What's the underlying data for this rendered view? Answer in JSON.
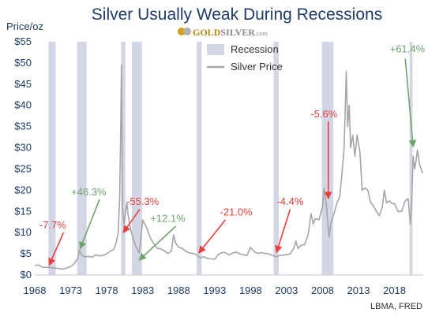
{
  "chart_data": {
    "type": "line",
    "title": "Silver Usually Weak During Recessions",
    "ylabel": "Price/oz",
    "xlim": [
      1968,
      2022
    ],
    "ylim": [
      0,
      55
    ],
    "x_ticks": [
      1968,
      1973,
      1978,
      1983,
      1988,
      1993,
      1998,
      2003,
      2008,
      2013,
      2018
    ],
    "y_ticks": [
      "$0",
      "$5",
      "$10",
      "$15",
      "$20",
      "$25",
      "$30",
      "$35",
      "$40",
      "$45",
      "$50",
      "$55"
    ],
    "legend": {
      "position": "top-right",
      "recession_label": "Recession",
      "series_label": "Silver Price"
    },
    "colors": {
      "recession": "#d3d6e4",
      "series": "#a6a6a6",
      "negative": "#e8403e",
      "positive": "#6fa36f",
      "axis_text": "#1f3b66"
    },
    "recessions": [
      {
        "start": 1969.9,
        "end": 1970.9
      },
      {
        "start": 1973.9,
        "end": 1975.2
      },
      {
        "start": 1980.0,
        "end": 1980.6
      },
      {
        "start": 1981.5,
        "end": 1982.9
      },
      {
        "start": 1990.5,
        "end": 1991.2
      },
      {
        "start": 2001.2,
        "end": 2001.9
      },
      {
        "start": 2007.9,
        "end": 2009.5
      },
      {
        "start": 2020.1,
        "end": 2020.5
      }
    ],
    "series": [
      {
        "name": "Silver Price",
        "points": [
          [
            1968.0,
            2.2
          ],
          [
            1968.5,
            2.4
          ],
          [
            1969.0,
            1.9
          ],
          [
            1969.5,
            1.8
          ],
          [
            1970.0,
            1.8
          ],
          [
            1970.5,
            1.7
          ],
          [
            1971.0,
            1.6
          ],
          [
            1971.5,
            1.5
          ],
          [
            1972.0,
            1.4
          ],
          [
            1972.5,
            1.7
          ],
          [
            1973.0,
            2.0
          ],
          [
            1973.5,
            2.7
          ],
          [
            1974.0,
            4.0
          ],
          [
            1974.2,
            6.0
          ],
          [
            1974.4,
            5.0
          ],
          [
            1974.8,
            4.4
          ],
          [
            1975.0,
            4.3
          ],
          [
            1975.5,
            4.4
          ],
          [
            1976.0,
            4.2
          ],
          [
            1976.5,
            4.8
          ],
          [
            1977.0,
            4.5
          ],
          [
            1977.5,
            4.6
          ],
          [
            1978.0,
            5.0
          ],
          [
            1978.5,
            5.6
          ],
          [
            1979.0,
            6.1
          ],
          [
            1979.3,
            7.5
          ],
          [
            1979.6,
            10.0
          ],
          [
            1979.8,
            18.0
          ],
          [
            1979.95,
            35.0
          ],
          [
            1980.05,
            49.5
          ],
          [
            1980.2,
            16.0
          ],
          [
            1980.4,
            12.0
          ],
          [
            1980.6,
            14.5
          ],
          [
            1980.8,
            17.0
          ],
          [
            1981.0,
            14.0
          ],
          [
            1981.3,
            11.0
          ],
          [
            1981.6,
            9.0
          ],
          [
            1982.0,
            7.0
          ],
          [
            1982.3,
            6.0
          ],
          [
            1982.5,
            5.2
          ],
          [
            1982.7,
            7.5
          ],
          [
            1983.0,
            13.0
          ],
          [
            1983.3,
            12.0
          ],
          [
            1983.6,
            11.0
          ],
          [
            1984.0,
            9.0
          ],
          [
            1984.5,
            7.5
          ],
          [
            1985.0,
            6.3
          ],
          [
            1985.5,
            6.2
          ],
          [
            1986.0,
            5.7
          ],
          [
            1986.5,
            5.1
          ],
          [
            1987.0,
            5.6
          ],
          [
            1987.3,
            9.5
          ],
          [
            1987.6,
            7.5
          ],
          [
            1988.0,
            6.5
          ],
          [
            1988.5,
            6.3
          ],
          [
            1989.0,
            5.6
          ],
          [
            1989.5,
            5.2
          ],
          [
            1990.0,
            5.1
          ],
          [
            1990.5,
            4.8
          ],
          [
            1991.0,
            4.0
          ],
          [
            1991.5,
            4.3
          ],
          [
            1992.0,
            3.9
          ],
          [
            1992.5,
            3.8
          ],
          [
            1993.0,
            3.7
          ],
          [
            1993.5,
            4.8
          ],
          [
            1994.0,
            5.3
          ],
          [
            1994.5,
            5.3
          ],
          [
            1995.0,
            4.7
          ],
          [
            1995.5,
            5.2
          ],
          [
            1996.0,
            5.4
          ],
          [
            1996.5,
            5.0
          ],
          [
            1997.0,
            4.8
          ],
          [
            1997.5,
            4.6
          ],
          [
            1998.0,
            6.5
          ],
          [
            1998.5,
            5.5
          ],
          [
            1999.0,
            5.1
          ],
          [
            1999.5,
            5.3
          ],
          [
            2000.0,
            5.1
          ],
          [
            2000.5,
            5.0
          ],
          [
            2001.0,
            4.6
          ],
          [
            2001.5,
            4.3
          ],
          [
            2002.0,
            4.6
          ],
          [
            2002.5,
            4.7
          ],
          [
            2003.0,
            4.8
          ],
          [
            2003.5,
            5.0
          ],
          [
            2004.0,
            6.3
          ],
          [
            2004.3,
            8.0
          ],
          [
            2004.6,
            6.2
          ],
          [
            2005.0,
            7.0
          ],
          [
            2005.5,
            7.2
          ],
          [
            2006.0,
            9.5
          ],
          [
            2006.4,
            14.5
          ],
          [
            2006.7,
            12.0
          ],
          [
            2007.0,
            13.3
          ],
          [
            2007.5,
            13.0
          ],
          [
            2008.0,
            16.0
          ],
          [
            2008.2,
            20.5
          ],
          [
            2008.5,
            17.0
          ],
          [
            2008.9,
            9.0
          ],
          [
            2009.2,
            12.5
          ],
          [
            2009.6,
            14.5
          ],
          [
            2010.0,
            17.0
          ],
          [
            2010.4,
            18.5
          ],
          [
            2010.8,
            26.0
          ],
          [
            2011.0,
            30.0
          ],
          [
            2011.3,
            48.0
          ],
          [
            2011.5,
            35.0
          ],
          [
            2011.7,
            40.0
          ],
          [
            2011.9,
            30.0
          ],
          [
            2012.2,
            33.0
          ],
          [
            2012.5,
            28.0
          ],
          [
            2012.8,
            33.0
          ],
          [
            2013.2,
            29.0
          ],
          [
            2013.5,
            20.0
          ],
          [
            2013.9,
            20.5
          ],
          [
            2014.3,
            20.0
          ],
          [
            2014.7,
            17.0
          ],
          [
            2015.0,
            16.5
          ],
          [
            2015.5,
            15.0
          ],
          [
            2015.9,
            14.0
          ],
          [
            2016.3,
            16.0
          ],
          [
            2016.6,
            20.0
          ],
          [
            2016.9,
            17.0
          ],
          [
            2017.3,
            17.5
          ],
          [
            2017.7,
            16.8
          ],
          [
            2018.0,
            16.8
          ],
          [
            2018.5,
            15.0
          ],
          [
            2019.0,
            15.0
          ],
          [
            2019.5,
            17.5
          ],
          [
            2019.9,
            18.0
          ],
          [
            2020.2,
            12.0
          ],
          [
            2020.4,
            17.0
          ],
          [
            2020.6,
            28.0
          ],
          [
            2020.8,
            25.0
          ],
          [
            2021.0,
            27.0
          ],
          [
            2021.2,
            29.5
          ],
          [
            2021.5,
            26.0
          ],
          [
            2021.9,
            24.0
          ]
        ]
      }
    ],
    "annotations": [
      {
        "text": "-7.7%",
        "color": "negative",
        "tx": 1970.5,
        "ty": 11.0,
        "ax": 1972.0,
        "ay": 10.0,
        "bx": 1970.0,
        "by": 2.3
      },
      {
        "text": "+46.3%",
        "color": "positive",
        "tx": 1975.5,
        "ty": 18.8,
        "ax": 1977.0,
        "ay": 17.8,
        "bx": 1974.3,
        "by": 6.2
      },
      {
        "text": "-55.3%",
        "color": "negative",
        "tx": 1983.0,
        "ty": 16.5,
        "ax": 1982.6,
        "ay": 15.5,
        "bx": 1980.3,
        "by": 10.0
      },
      {
        "text": "+12.1%",
        "color": "positive",
        "tx": 1986.5,
        "ty": 12.5,
        "ax": 1987.6,
        "ay": 11.5,
        "bx": 1982.5,
        "by": 3.5
      },
      {
        "text": "-21.0%",
        "color": "negative",
        "tx": 1996.0,
        "ty": 14.0,
        "ax": 1994.5,
        "ay": 13.0,
        "bx": 1990.8,
        "by": 5.2
      },
      {
        "text": "-4.4%",
        "color": "negative",
        "tx": 2003.5,
        "ty": 16.5,
        "ax": 2003.5,
        "ay": 15.5,
        "bx": 2001.6,
        "by": 5.3
      },
      {
        "text": "-5.6%",
        "color": "negative",
        "tx": 2008.2,
        "ty": 37.2,
        "ax": 2008.8,
        "ay": 36.2,
        "bx": 2008.8,
        "by": 18.0
      },
      {
        "text": "+61.4%",
        "color": "positive",
        "tx": 2019.8,
        "ty": 52.5,
        "ax": 2019.5,
        "ay": 51.0,
        "bx": 2020.6,
        "by": 30.2
      }
    ],
    "source": "LBMA, FRED",
    "logo": {
      "gold": "GOLD",
      "silver": "SILVER",
      "dotcom": ".com"
    }
  }
}
